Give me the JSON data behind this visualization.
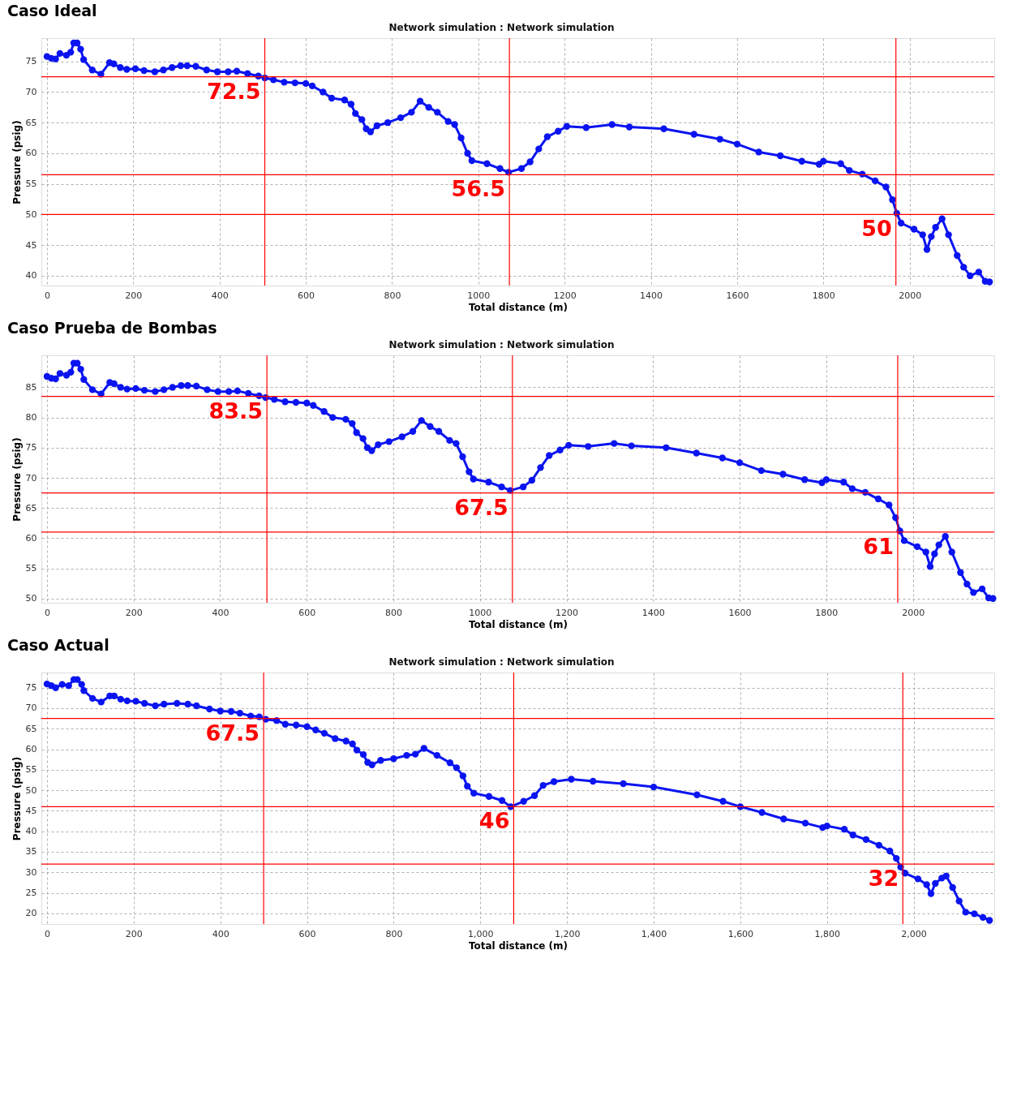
{
  "chart_data": [
    {
      "type": "line",
      "title": "Caso Ideal",
      "subtitle": "Network simulation : Network simulation",
      "xlabel": "Total distance (m)",
      "ylabel": "Pressure (psig)",
      "xlim": [
        -13,
        2196
      ],
      "ylim": [
        38.4,
        78.8
      ],
      "xticks": [
        0,
        200,
        400,
        600,
        800,
        1000,
        1200,
        1400,
        1600,
        1800,
        2000
      ],
      "yticks": [
        40,
        45,
        50,
        55,
        60,
        65,
        70,
        75
      ],
      "grid": true,
      "marker": "circle",
      "line_style": "solid",
      "series": [
        {
          "color": "#0a14f0",
          "x": [
            0,
            10,
            20,
            30,
            45,
            55,
            62,
            70,
            78,
            85,
            105,
            125,
            145,
            155,
            170,
            185,
            205,
            225,
            250,
            270,
            290,
            310,
            325,
            345,
            370,
            395,
            420,
            440,
            465,
            490,
            505,
            525,
            550,
            575,
            600,
            615,
            640,
            660,
            690,
            705,
            715,
            730,
            740,
            750,
            765,
            790,
            820,
            845,
            865,
            885,
            905,
            930,
            945,
            960,
            975,
            985,
            1020,
            1050,
            1070,
            1100,
            1120,
            1140,
            1160,
            1185,
            1205,
            1250,
            1310,
            1350,
            1430,
            1500,
            1560,
            1600,
            1650,
            1700,
            1750,
            1790,
            1800,
            1840,
            1860,
            1890,
            1920,
            1945,
            1960,
            1970,
            1980,
            2010,
            2030,
            2040,
            2050,
            2060,
            2075,
            2090,
            2110,
            2125,
            2140,
            2160,
            2175,
            2185
          ],
          "values": [
            75.8,
            75.5,
            75.4,
            76.3,
            76,
            76.5,
            78,
            78,
            77,
            75.3,
            73.6,
            72.9,
            74.8,
            74.6,
            74,
            73.7,
            73.8,
            73.5,
            73.3,
            73.6,
            74,
            74.3,
            74.3,
            74.2,
            73.6,
            73.3,
            73.3,
            73.4,
            73,
            72.6,
            72.3,
            72,
            71.6,
            71.5,
            71.4,
            71,
            70,
            69,
            68.7,
            68,
            66.5,
            65.5,
            64,
            63.5,
            64.5,
            65,
            65.8,
            66.7,
            68.5,
            67.5,
            66.7,
            65.2,
            64.7,
            62.5,
            60,
            58.8,
            58.3,
            57.5,
            56.9,
            57.5,
            58.6,
            60.7,
            62.7,
            63.6,
            64.4,
            64.2,
            64.7,
            64.3,
            64,
            63.1,
            62.3,
            61.5,
            60.2,
            59.6,
            58.7,
            58.2,
            58.7,
            58.3,
            57.2,
            56.6,
            55.5,
            54.5,
            52.4,
            50.2,
            48.6,
            47.6,
            46.7,
            44.3,
            46.4,
            47.9,
            49.3,
            46.7,
            43.3,
            41.4,
            40,
            40.6,
            39.1,
            39
          ]
        }
      ],
      "ref_lines": [
        {
          "axis": "y",
          "value": 72.5,
          "color": "#ff0000"
        },
        {
          "axis": "x",
          "value": 505,
          "color": "#ff0000"
        },
        {
          "axis": "y",
          "value": 56.5,
          "color": "#ff0000"
        },
        {
          "axis": "x",
          "value": 1072,
          "color": "#ff0000"
        },
        {
          "axis": "y",
          "value": 50,
          "color": "#ff0000"
        },
        {
          "axis": "x",
          "value": 1968,
          "color": "#ff0000"
        }
      ],
      "annotations": [
        {
          "text": "72.5",
          "x": 505,
          "y": 72.5
        },
        {
          "text": "56.5",
          "x": 1072,
          "y": 56.5
        },
        {
          "text": "50",
          "x": 1968,
          "y": 50
        }
      ]
    },
    {
      "type": "line",
      "title": "Caso Prueba de Bombas",
      "subtitle": "Network simulation : Network simulation",
      "xlabel": "Total distance (m)",
      "ylabel": "Pressure (psig)",
      "xlim": [
        -13,
        2188
      ],
      "ylim": [
        49.3,
        90.3
      ],
      "xticks": [
        0,
        200,
        400,
        600,
        800,
        1000,
        1200,
        1400,
        1600,
        1800,
        2000
      ],
      "yticks": [
        50,
        55,
        60,
        65,
        70,
        75,
        80,
        85
      ],
      "grid": true,
      "marker": "circle",
      "line_style": "solid",
      "series": [
        {
          "color": "#0a14f0",
          "x": [
            0,
            10,
            20,
            30,
            45,
            55,
            62,
            70,
            78,
            85,
            105,
            125,
            145,
            155,
            170,
            185,
            205,
            225,
            250,
            270,
            290,
            310,
            325,
            345,
            370,
            395,
            420,
            440,
            465,
            490,
            505,
            525,
            550,
            575,
            600,
            615,
            640,
            660,
            690,
            705,
            715,
            730,
            740,
            750,
            765,
            790,
            820,
            845,
            865,
            885,
            905,
            930,
            945,
            960,
            975,
            985,
            1020,
            1050,
            1070,
            1100,
            1120,
            1140,
            1160,
            1185,
            1205,
            1250,
            1310,
            1350,
            1430,
            1500,
            1560,
            1600,
            1650,
            1700,
            1750,
            1790,
            1800,
            1840,
            1860,
            1890,
            1920,
            1945,
            1960,
            1970,
            1980,
            2010,
            2030,
            2040,
            2050,
            2060,
            2075,
            2090,
            2110,
            2125,
            2140,
            2160,
            2175,
            2185
          ],
          "values": [
            86.8,
            86.5,
            86.4,
            87.3,
            87,
            87.5,
            89,
            89,
            88,
            86.3,
            84.6,
            83.9,
            85.8,
            85.6,
            85,
            84.7,
            84.8,
            84.5,
            84.3,
            84.6,
            85,
            85.3,
            85.3,
            85.2,
            84.6,
            84.3,
            84.3,
            84.4,
            84,
            83.6,
            83.3,
            83,
            82.6,
            82.5,
            82.4,
            82,
            81,
            80,
            79.7,
            79,
            77.5,
            76.5,
            75,
            74.5,
            75.5,
            76,
            76.8,
            77.7,
            79.5,
            78.5,
            77.7,
            76.2,
            75.7,
            73.5,
            71,
            69.8,
            69.3,
            68.5,
            67.9,
            68.5,
            69.6,
            71.7,
            73.7,
            74.6,
            75.4,
            75.2,
            75.7,
            75.3,
            75,
            74.1,
            73.3,
            72.5,
            71.2,
            70.6,
            69.7,
            69.2,
            69.7,
            69.3,
            68.2,
            67.6,
            66.5,
            65.5,
            63.4,
            61.2,
            59.6,
            58.6,
            57.7,
            55.3,
            57.4,
            58.9,
            60.3,
            57.7,
            54.3,
            52.4,
            51,
            51.6,
            50.1,
            50
          ]
        }
      ],
      "ref_lines": [
        {
          "axis": "y",
          "value": 83.5,
          "color": "#ff0000"
        },
        {
          "axis": "x",
          "value": 508,
          "color": "#ff0000"
        },
        {
          "axis": "y",
          "value": 67.5,
          "color": "#ff0000"
        },
        {
          "axis": "x",
          "value": 1075,
          "color": "#ff0000"
        },
        {
          "axis": "y",
          "value": 61,
          "color": "#ff0000"
        },
        {
          "axis": "x",
          "value": 1965,
          "color": "#ff0000"
        }
      ],
      "annotations": [
        {
          "text": "83.5",
          "x": 508,
          "y": 83.5
        },
        {
          "text": "67.5",
          "x": 1075,
          "y": 67.5
        },
        {
          "text": "61",
          "x": 1965,
          "y": 61
        }
      ]
    },
    {
      "type": "line",
      "title": "Caso Actual",
      "subtitle": "Network simulation : Network simulation",
      "xlabel": "Total distance (m)",
      "ylabel": "Pressure (psig)",
      "xlim": [
        -13,
        2186
      ],
      "ylim": [
        17.4,
        78.7
      ],
      "xticks": [
        0,
        200,
        400,
        600,
        800,
        {
          "value": 1000,
          "label": "1,000"
        },
        {
          "value": 1200,
          "label": "1,200"
        },
        {
          "value": 1400,
          "label": "1,400"
        },
        {
          "value": 1600,
          "label": "1,600"
        },
        {
          "value": 1800,
          "label": "1,800"
        },
        {
          "value": 2000,
          "label": "2,000"
        }
      ],
      "yticks": [
        20,
        25,
        30,
        35,
        40,
        45,
        50,
        55,
        60,
        65,
        70,
        75
      ],
      "grid": true,
      "marker": "circle",
      "line_style": "solid",
      "series": [
        {
          "color": "#0a14f0",
          "x": [
            0,
            10,
            20,
            35,
            50,
            62,
            70,
            80,
            85,
            105,
            125,
            145,
            155,
            170,
            185,
            205,
            225,
            250,
            270,
            300,
            325,
            345,
            375,
            400,
            425,
            445,
            470,
            490,
            505,
            530,
            550,
            575,
            600,
            620,
            640,
            665,
            690,
            705,
            715,
            730,
            740,
            750,
            770,
            800,
            830,
            850,
            870,
            900,
            930,
            945,
            960,
            970,
            985,
            1020,
            1050,
            1070,
            1100,
            1125,
            1145,
            1170,
            1210,
            1260,
            1330,
            1400,
            1500,
            1560,
            1600,
            1650,
            1700,
            1750,
            1790,
            1800,
            1840,
            1860,
            1890,
            1920,
            1945,
            1960,
            1970,
            1980,
            2010,
            2030,
            2040,
            2050,
            2065,
            2075,
            2090,
            2105,
            2120,
            2140,
            2160,
            2175
          ],
          "values": [
            75.9,
            75.5,
            75,
            75.8,
            75.5,
            77,
            77,
            75.8,
            74.3,
            72.4,
            71.5,
            73,
            73,
            72.2,
            71.8,
            71.7,
            71.2,
            70.6,
            71,
            71.2,
            71,
            70.6,
            69.8,
            69.3,
            69.2,
            68.8,
            68.1,
            67.9,
            67.3,
            67,
            66.1,
            65.9,
            65.5,
            64.7,
            63.9,
            62.6,
            62,
            61.3,
            59.8,
            58.7,
            56.8,
            56.2,
            57.3,
            57.7,
            58.5,
            58.8,
            60.2,
            58.5,
            56.7,
            55.5,
            53.5,
            51,
            49.3,
            48.5,
            47.5,
            46,
            47.3,
            48.7,
            51.2,
            52.1,
            52.7,
            52.2,
            51.6,
            50.8,
            48.9,
            47.3,
            46,
            44.6,
            43,
            42,
            40.9,
            41.3,
            40.5,
            39.1,
            38,
            36.6,
            35.2,
            33.4,
            31.3,
            29.8,
            28.4,
            27,
            24.8,
            27.3,
            28.6,
            29.1,
            26.3,
            23,
            20.3,
            19.9,
            19,
            18.3
          ]
        }
      ],
      "ref_lines": [
        {
          "axis": "y",
          "value": 67.5,
          "color": "#ff0000"
        },
        {
          "axis": "x",
          "value": 500,
          "color": "#ff0000"
        },
        {
          "axis": "y",
          "value": 46,
          "color": "#ff0000"
        },
        {
          "axis": "x",
          "value": 1077,
          "color": "#ff0000"
        },
        {
          "axis": "y",
          "value": 32,
          "color": "#ff0000"
        },
        {
          "axis": "x",
          "value": 1975,
          "color": "#ff0000"
        }
      ],
      "annotations": [
        {
          "text": "67.5",
          "x": 500,
          "y": 67.5
        },
        {
          "text": "46",
          "x": 1077,
          "y": 46
        },
        {
          "text": "32",
          "x": 1975,
          "y": 32
        }
      ]
    }
  ]
}
